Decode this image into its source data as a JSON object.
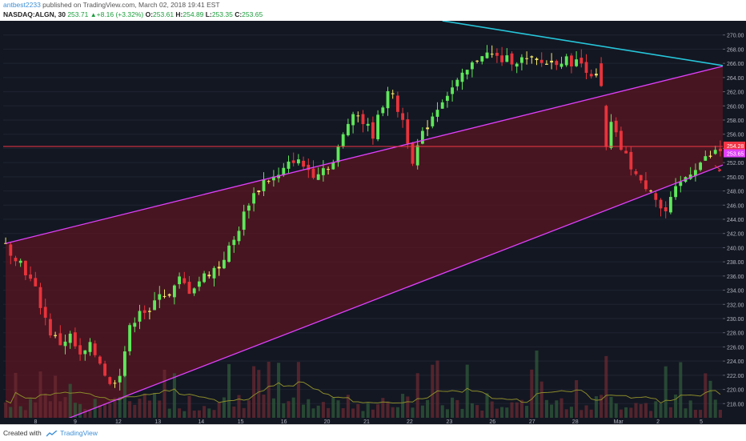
{
  "header": {
    "username": "antbest2233",
    "published_text": " published on TradingView.com, March 02, 2018 19:41 EST",
    "symbol": "NASDAQ:ALGN, 30",
    "last": "253.71",
    "change": "+8.16 (+3.32%)",
    "o_label": "O:",
    "open": "253.61",
    "h_label": "H:",
    "high": "254.89",
    "l_label": "L:",
    "low": "253.35",
    "c_label": "C:",
    "close": "253.65"
  },
  "footer": {
    "created_with": "Created with",
    "brand": "TradingView"
  },
  "colors": {
    "background": "#131722",
    "channel_line": "#e040fb",
    "channel_fill": "#5a1522",
    "trend_line": "#26c6da",
    "horizontal_line": "#f23645",
    "up_candle": "#5ee85a",
    "down_candle": "#e8333b",
    "doji_candle": "#f5e96a",
    "volume_ma": "#8a8a2a"
  },
  "chart_data": {
    "type": "candlestick",
    "ylim": [
      216,
      272
    ],
    "y_ticks": [
      "218.00",
      "220.00",
      "222.00",
      "224.00",
      "226.00",
      "228.00",
      "230.00",
      "232.00",
      "234.00",
      "236.00",
      "238.00",
      "240.00",
      "242.00",
      "244.00",
      "246.00",
      "248.00",
      "250.00",
      "252.00",
      "254.00",
      "256.00",
      "258.00",
      "260.00",
      "262.00",
      "264.00",
      "266.00",
      "268.00",
      "270.00"
    ],
    "x_ticks": [
      "8",
      "9",
      "12",
      "13",
      "14",
      "15",
      "16",
      "20",
      "21",
      "22",
      "23",
      "26",
      "27",
      "28",
      "Mar",
      "2",
      "5"
    ],
    "price_labels": [
      {
        "text": "254.28",
        "value": 254.28,
        "color": "#f23645"
      },
      {
        "text": "253.65",
        "value": 253.65,
        "color": "#e040fb"
      }
    ],
    "horizontal_line": 254.28,
    "channel_upper": [
      [
        0,
        240.6
      ],
      [
        148,
        266.2
      ]
    ],
    "channel_lower": [
      [
        0,
        212.5
      ],
      [
        148,
        252.6
      ]
    ],
    "trend_line": [
      [
        88,
        272.0
      ],
      [
        148,
        265.3
      ]
    ],
    "path": [
      [
        0,
        240.3
      ],
      [
        3,
        238.0
      ],
      [
        6,
        234.0
      ],
      [
        9,
        228.0
      ],
      [
        11,
        226.5
      ],
      [
        13,
        227.5
      ],
      [
        15,
        224.5
      ],
      [
        17,
        226.0
      ],
      [
        19,
        224.0
      ],
      [
        21,
        220.5
      ],
      [
        23,
        222.5
      ],
      [
        25,
        228.5
      ],
      [
        27,
        231.5
      ],
      [
        29,
        230.5
      ],
      [
        31,
        234.0
      ],
      [
        33,
        233.0
      ],
      [
        35,
        235.5
      ],
      [
        37,
        234.0
      ],
      [
        40,
        236.0
      ],
      [
        43,
        237.5
      ],
      [
        46,
        241.0
      ],
      [
        49,
        246.5
      ],
      [
        52,
        249.5
      ],
      [
        55,
        250.0
      ],
      [
        58,
        252.5
      ],
      [
        62,
        250.5
      ],
      [
        66,
        252.0
      ],
      [
        70,
        259.5
      ],
      [
        74,
        256.0
      ],
      [
        77,
        262.5
      ],
      [
        80,
        258.0
      ],
      [
        82,
        252.5
      ],
      [
        85,
        257.5
      ],
      [
        88,
        261.0
      ],
      [
        92,
        264.0
      ],
      [
        96,
        267.5
      ],
      [
        100,
        266.5
      ],
      [
        104,
        266.5
      ],
      [
        108,
        266.0
      ],
      [
        112,
        266.5
      ],
      [
        116,
        266.0
      ],
      [
        119,
        264.0
      ],
      [
        121,
        259.0
      ],
      [
        124,
        254.0
      ],
      [
        126,
        251.5
      ],
      [
        128,
        249.0
      ],
      [
        130,
        248.5
      ],
      [
        132,
        245.5
      ],
      [
        133,
        245.0
      ],
      [
        135,
        248.0
      ],
      [
        137,
        250.0
      ],
      [
        139,
        251.5
      ],
      [
        141,
        252.5
      ],
      [
        143,
        253.5
      ],
      [
        144,
        253.65
      ]
    ],
    "volume_bars": 145
  }
}
